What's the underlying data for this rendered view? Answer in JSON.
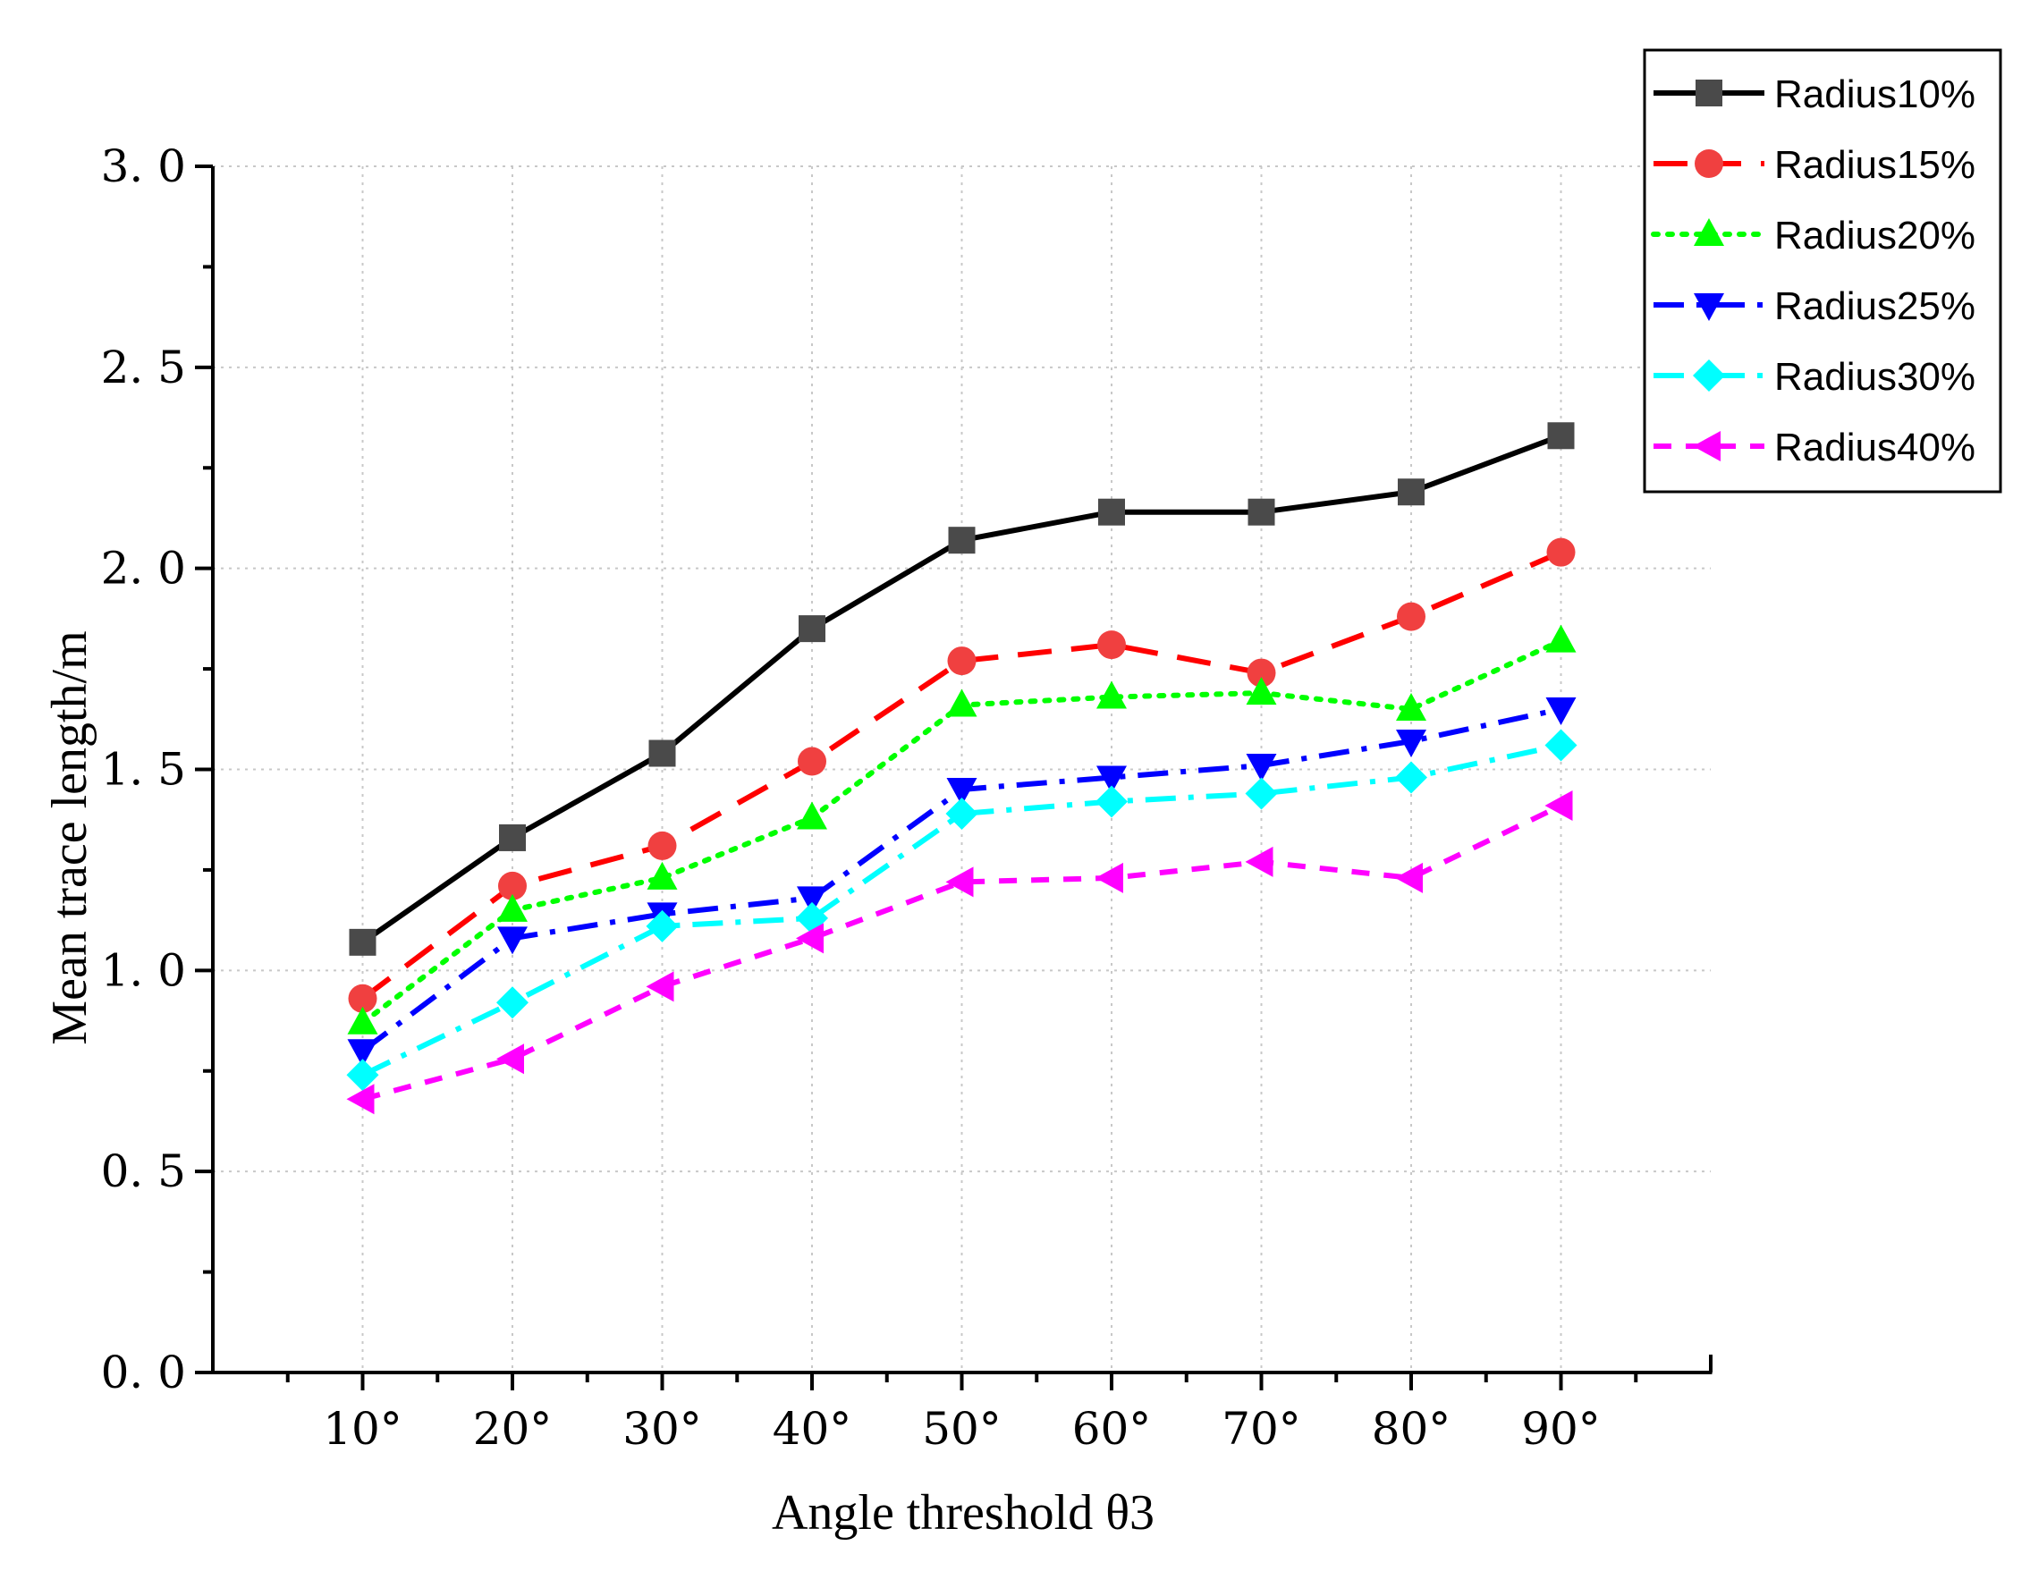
{
  "chart_data": {
    "type": "line",
    "title": "",
    "xlabel": "Angle threshold  θ3",
    "ylabel": "Mean trace length/m",
    "categories": [
      "10°",
      "20°",
      "30°",
      "40°",
      "50°",
      "60°",
      "70°",
      "80°",
      "90°"
    ],
    "x": [
      10,
      20,
      30,
      40,
      50,
      60,
      70,
      80,
      90
    ],
    "xlim": [
      0,
      100
    ],
    "ylim": [
      0,
      3.0
    ],
    "yticks": [
      0.0,
      0.5,
      1.0,
      1.5,
      2.0,
      2.5,
      3.0
    ],
    "ytick_labels": [
      "0. 0",
      "0. 5",
      "1. 0",
      "1. 5",
      "2. 0",
      "2. 5",
      "3. 0"
    ],
    "grid": true,
    "legend_position": "top-right outside",
    "series": [
      {
        "name": "Radius10%",
        "color": "#000000",
        "marker_color": "#4a4a4a",
        "marker": "square",
        "dash": "solid",
        "values": [
          1.07,
          1.33,
          1.54,
          1.85,
          2.07,
          2.14,
          2.14,
          2.19,
          2.33
        ]
      },
      {
        "name": "Radius15%",
        "color": "#ff0000",
        "marker_color": "#f04040",
        "marker": "circle",
        "dash": "dash",
        "values": [
          0.93,
          1.21,
          1.31,
          1.52,
          1.77,
          1.81,
          1.74,
          1.88,
          2.04
        ]
      },
      {
        "name": "Radius20%",
        "color": "#00ff00",
        "marker_color": "#00ff00",
        "marker": "triangle-up",
        "dash": "dot",
        "values": [
          0.87,
          1.15,
          1.23,
          1.38,
          1.66,
          1.68,
          1.69,
          1.65,
          1.82
        ]
      },
      {
        "name": "Radius25%",
        "color": "#0000ff",
        "marker_color": "#0000ff",
        "marker": "triangle-down",
        "dash": "dashdot",
        "values": [
          0.8,
          1.08,
          1.14,
          1.18,
          1.45,
          1.48,
          1.51,
          1.57,
          1.65
        ]
      },
      {
        "name": "Radius30%",
        "color": "#00ffff",
        "marker_color": "#00ffff",
        "marker": "diamond",
        "dash": "dashdot",
        "values": [
          0.74,
          0.92,
          1.11,
          1.13,
          1.39,
          1.42,
          1.44,
          1.48,
          1.56
        ]
      },
      {
        "name": "Radius40%",
        "color": "#ff00ff",
        "marker_color": "#ff00ff",
        "marker": "triangle-left",
        "dash": "shortdash",
        "values": [
          0.68,
          0.78,
          0.96,
          1.08,
          1.22,
          1.23,
          1.27,
          1.23,
          1.41
        ]
      }
    ]
  }
}
